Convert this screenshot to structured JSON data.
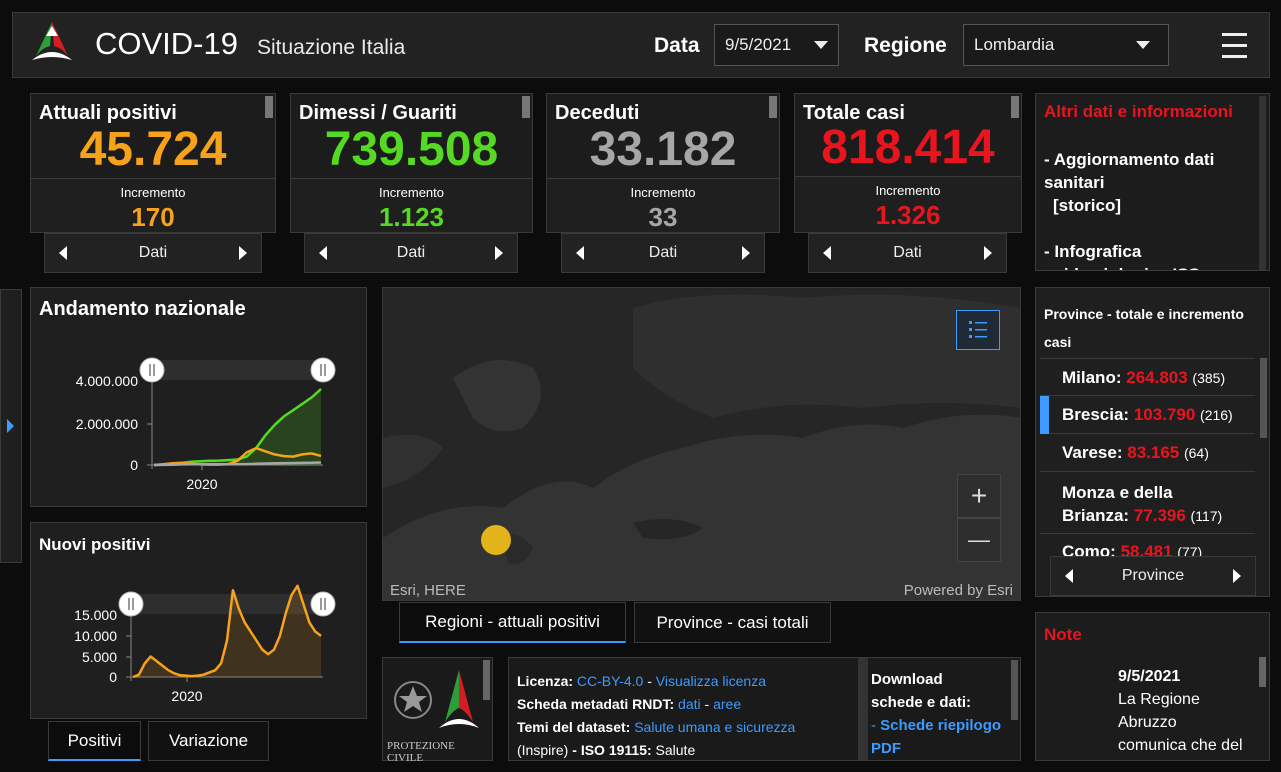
{
  "header": {
    "title": "COVID-19",
    "subtitle": "Situazione Italia",
    "date_label": "Data",
    "date_value": "9/5/2021",
    "region_label": "Regione",
    "region_value": "Lombardia"
  },
  "stats": [
    {
      "title": "Attuali positivi",
      "value": "45.724",
      "inc_label": "Incremento",
      "inc_value": "170",
      "nav_label": "Dati",
      "color": "#f7a21b"
    },
    {
      "title": "Dimessi / Guariti",
      "value": "739.508",
      "inc_label": "Incremento",
      "inc_value": "1.123",
      "nav_label": "Dati",
      "color": "#56d923"
    },
    {
      "title": "Deceduti",
      "value": "33.182",
      "inc_label": "Incremento",
      "inc_value": "33",
      "nav_label": "Dati",
      "color": "#a6a6a6"
    },
    {
      "title": "Totale casi",
      "value": "818.414",
      "inc_label": "Incremento",
      "inc_value": "1.326",
      "nav_label": "Dati",
      "color": "#e8141e"
    }
  ],
  "info": {
    "title": "Altri dati e informazioni",
    "item1_line1": "- Aggiornamento dati",
    "item1_line2": "sanitari",
    "item1_line3": "[storico]",
    "item2_line1": "- Infografica",
    "item2_line2": "epidemiologica ISS"
  },
  "chart_data": [
    {
      "type": "line",
      "title": "Andamento nazionale",
      "x_tick_labels": [
        "2020"
      ],
      "y_tick_labels": [
        "4.000.000",
        "2.000.000",
        "0"
      ],
      "ylim": [
        0,
        4500000
      ],
      "series": [
        {
          "color": "#56d923",
          "values": [
            0,
            20000,
            60000,
            100000,
            150000,
            180000,
            200000,
            210000,
            230000,
            260000,
            400000,
            800000,
            1400000,
            1900000,
            2300000,
            2600000,
            2900000,
            3200000,
            3600000
          ]
        },
        {
          "color": "#f7a21b",
          "values": [
            0,
            40000,
            80000,
            100000,
            60000,
            30000,
            20000,
            20000,
            40000,
            200000,
            600000,
            800000,
            650000,
            500000,
            420000,
            400000,
            500000,
            550000,
            430000
          ]
        },
        {
          "color": "#a6a6a6",
          "values": [
            0,
            3000,
            15000,
            30000,
            34000,
            35000,
            35000,
            35000,
            36000,
            38000,
            45000,
            55000,
            70000,
            80000,
            90000,
            95000,
            100000,
            110000,
            120000
          ]
        }
      ]
    },
    {
      "type": "area",
      "title": "Nuovi positivi",
      "x_tick_labels": [
        "2020"
      ],
      "y_tick_labels": [
        "15.000",
        "10.000",
        "5.000",
        "0"
      ],
      "ylim": [
        0,
        16000
      ],
      "series": [
        {
          "color": "#f7a21b",
          "values": [
            0,
            500,
            3000,
            4500,
            3500,
            2500,
            1500,
            800,
            400,
            300,
            200,
            300,
            500,
            1000,
            1500,
            3000,
            8000,
            19000,
            15000,
            12000,
            10000,
            8000,
            6000,
            5000,
            6000,
            9000,
            14000,
            18000,
            20000,
            16000,
            12000,
            10000,
            9000
          ]
        }
      ]
    }
  ],
  "charts_extra": {
    "tab_positivi": "Positivi",
    "tab_variazione": "Variazione"
  },
  "map": {
    "attribution_left": "Esri, HERE",
    "attribution_right": "Powered by Esri",
    "zoom_in": "+",
    "zoom_out": "—",
    "tab_regioni": "Regioni - attuali positivi",
    "tab_province": "Province - casi totali"
  },
  "provinces": {
    "title_line1": "Province - totale e incremento",
    "title_line2": "casi",
    "items": [
      {
        "name": "Milano:",
        "value": "264.803",
        "inc": "(385)"
      },
      {
        "name": "Brescia:",
        "value": "103.790",
        "inc": "(216)"
      },
      {
        "name": "Varese:",
        "value": "83.165",
        "inc": "(64)"
      },
      {
        "name1": "Monza e della",
        "name2": "Brianza:",
        "value": "77.396",
        "inc": "(117)"
      },
      {
        "name": "Como:",
        "value": "58.481",
        "inc": "(77)"
      }
    ],
    "nav_label": "Province"
  },
  "license": {
    "l1_label": "Licenza:",
    "l1_link1": "CC-BY-4.0",
    "l1_sep": "-",
    "l1_link2": "Visualizza licenza",
    "l2_label": "Scheda metadati RNDT:",
    "l2_link1": "dati",
    "l2_sep": "-",
    "l2_link2": "aree",
    "l3_label": "Temi del dataset:",
    "l3_link": "Salute umana e sicurezza",
    "l4_text1": "(Inspire)",
    "l4_sep": "-",
    "l4_label": "ISO 19115:",
    "l4_text2": "Salute",
    "download_title1": "Download",
    "download_title2": "schede e dati:",
    "download_dash": "-",
    "download_link1": "Schede riepilogo",
    "download_link2": "PDF"
  },
  "logo_text": "PROTEZIONE CIVILE",
  "note": {
    "title": "Note",
    "date": "9/5/2021",
    "line1": "La Regione",
    "line2": "Abruzzo",
    "line3": "comunica che del"
  }
}
